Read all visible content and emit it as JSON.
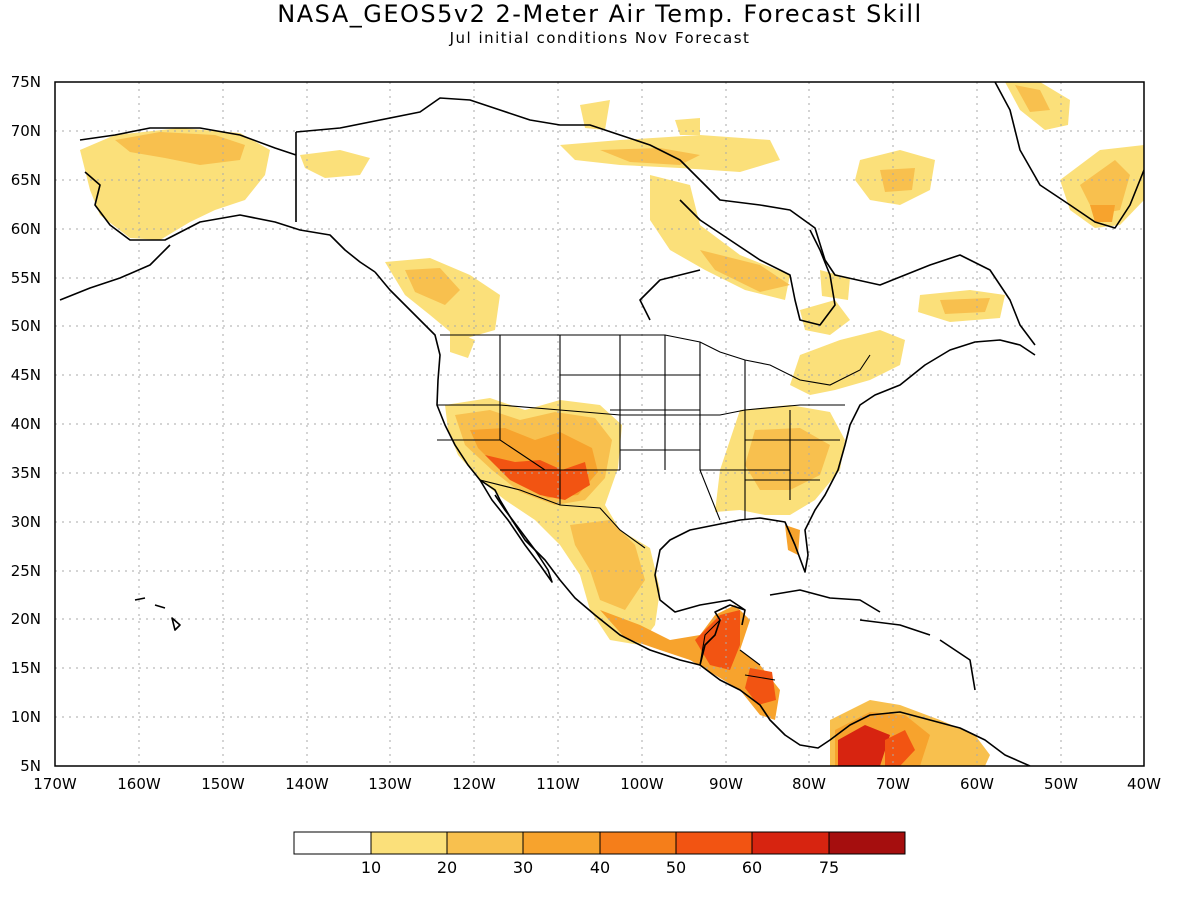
{
  "title": "NASA_GEOS5v2 2-Meter Air Temp. Forecast Skill",
  "subtitle": "Jul initial conditions  Nov Forecast",
  "map": {
    "lon_range": [
      -170,
      -40
    ],
    "lat_range": [
      5,
      75
    ],
    "lat_ticks": [
      "5N",
      "10N",
      "15N",
      "20N",
      "25N",
      "30N",
      "35N",
      "40N",
      "45N",
      "50N",
      "55N",
      "60N",
      "65N",
      "70N",
      "75N"
    ],
    "lon_ticks": [
      "170W",
      "160W",
      "150W",
      "140W",
      "130W",
      "120W",
      "110W",
      "100W",
      "90W",
      "80W",
      "70W",
      "60W",
      "50W",
      "40W"
    ],
    "gridlines": "dotted"
  },
  "legend": {
    "colors": [
      "#ffffff",
      "#fbe07a",
      "#f8c04e",
      "#f7a32d",
      "#f57e1a",
      "#f25412",
      "#d72410",
      "#a50e0e"
    ],
    "labels": [
      "10",
      "20",
      "30",
      "40",
      "50",
      "60",
      "75"
    ]
  }
}
